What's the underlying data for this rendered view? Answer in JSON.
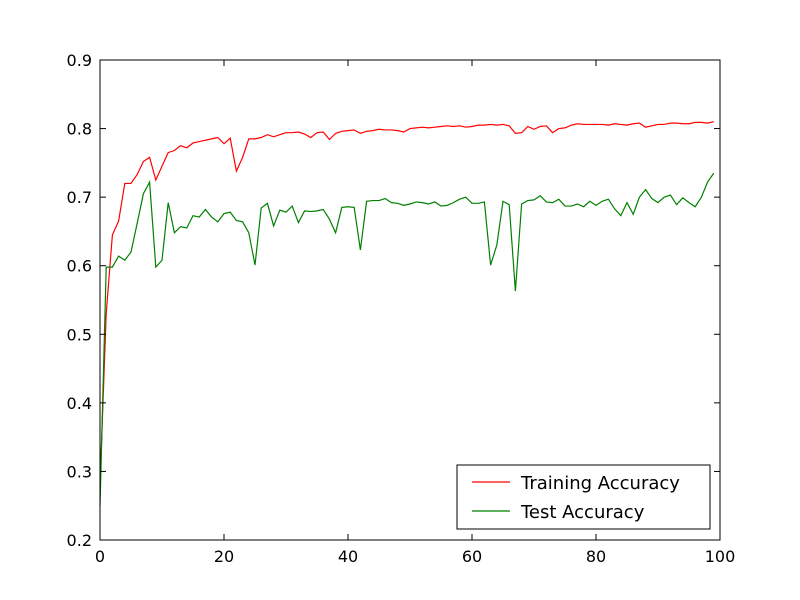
{
  "chart_data": {
    "type": "line",
    "title": "",
    "xlabel": "",
    "ylabel": "",
    "xlim": [
      0,
      100
    ],
    "ylim": [
      0.2,
      0.9
    ],
    "x_ticks": [
      0,
      20,
      40,
      60,
      80,
      100
    ],
    "x_tick_labels": [
      "0",
      "20",
      "40",
      "60",
      "80",
      "100"
    ],
    "y_ticks": [
      0.2,
      0.3,
      0.4,
      0.5,
      0.6,
      0.7,
      0.8,
      0.9
    ],
    "y_tick_labels": [
      "0.2",
      "0.3",
      "0.4",
      "0.5",
      "0.6",
      "0.7",
      "0.8",
      "0.9"
    ],
    "grid": false,
    "legend_position": "lower-right",
    "x": [
      0,
      1,
      2,
      3,
      4,
      5,
      6,
      7,
      8,
      9,
      10,
      11,
      12,
      13,
      14,
      15,
      16,
      17,
      18,
      19,
      20,
      21,
      22,
      23,
      24,
      25,
      26,
      27,
      28,
      29,
      30,
      31,
      32,
      33,
      34,
      35,
      36,
      37,
      38,
      39,
      40,
      41,
      42,
      43,
      44,
      45,
      46,
      47,
      48,
      49,
      50,
      51,
      52,
      53,
      54,
      55,
      56,
      57,
      58,
      59,
      60,
      61,
      62,
      63,
      64,
      65,
      66,
      67,
      68,
      69,
      70,
      71,
      72,
      73,
      74,
      75,
      76,
      77,
      78,
      79,
      80,
      81,
      82,
      83,
      84,
      85,
      86,
      87,
      88,
      89,
      90,
      91,
      92,
      93,
      94,
      95,
      96,
      97,
      98,
      99
    ],
    "series": [
      {
        "name": "Training Accuracy",
        "color": "#ff0000",
        "values": [
          0.28,
          0.53,
          0.645,
          0.665,
          0.72,
          0.72,
          0.733,
          0.752,
          0.758,
          0.725,
          0.745,
          0.765,
          0.768,
          0.775,
          0.772,
          0.779,
          0.781,
          0.783,
          0.785,
          0.787,
          0.778,
          0.786,
          0.738,
          0.758,
          0.785,
          0.785,
          0.787,
          0.791,
          0.788,
          0.791,
          0.794,
          0.794,
          0.795,
          0.792,
          0.787,
          0.794,
          0.795,
          0.784,
          0.793,
          0.796,
          0.797,
          0.798,
          0.793,
          0.796,
          0.797,
          0.799,
          0.798,
          0.798,
          0.797,
          0.795,
          0.8,
          0.801,
          0.802,
          0.801,
          0.802,
          0.803,
          0.804,
          0.803,
          0.804,
          0.802,
          0.803,
          0.805,
          0.805,
          0.806,
          0.805,
          0.806,
          0.804,
          0.793,
          0.794,
          0.803,
          0.799,
          0.803,
          0.804,
          0.794,
          0.8,
          0.801,
          0.805,
          0.807,
          0.806,
          0.806,
          0.806,
          0.806,
          0.805,
          0.807,
          0.806,
          0.805,
          0.807,
          0.808,
          0.802,
          0.804,
          0.806,
          0.806,
          0.808,
          0.808,
          0.807,
          0.807,
          0.809,
          0.809,
          0.808,
          0.81
        ]
      },
      {
        "name": "Test Accuracy",
        "color": "#008000",
        "values": [
          0.25,
          0.598,
          0.598,
          0.614,
          0.608,
          0.62,
          0.662,
          0.705,
          0.722,
          0.598,
          0.608,
          0.692,
          0.648,
          0.657,
          0.655,
          0.673,
          0.671,
          0.682,
          0.671,
          0.664,
          0.676,
          0.678,
          0.666,
          0.664,
          0.648,
          0.601,
          0.684,
          0.691,
          0.658,
          0.681,
          0.678,
          0.687,
          0.663,
          0.68,
          0.679,
          0.68,
          0.682,
          0.668,
          0.648,
          0.685,
          0.686,
          0.685,
          0.623,
          0.694,
          0.695,
          0.695,
          0.698,
          0.692,
          0.691,
          0.688,
          0.69,
          0.693,
          0.692,
          0.69,
          0.693,
          0.687,
          0.688,
          0.692,
          0.697,
          0.7,
          0.691,
          0.691,
          0.693,
          0.601,
          0.63,
          0.694,
          0.689,
          0.563,
          0.69,
          0.695,
          0.696,
          0.702,
          0.693,
          0.692,
          0.697,
          0.687,
          0.687,
          0.69,
          0.686,
          0.694,
          0.688,
          0.694,
          0.697,
          0.683,
          0.673,
          0.692,
          0.675,
          0.7,
          0.711,
          0.698,
          0.692,
          0.7,
          0.703,
          0.689,
          0.699,
          0.692,
          0.686,
          0.7,
          0.722,
          0.735
        ]
      }
    ]
  }
}
